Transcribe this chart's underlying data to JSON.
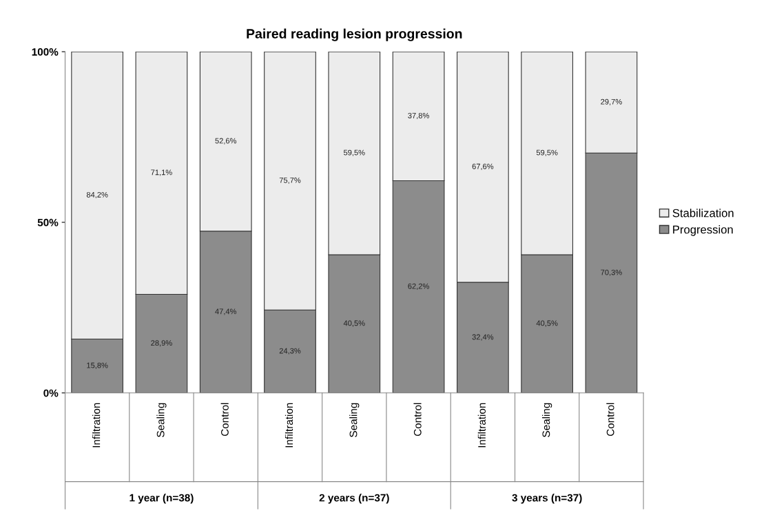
{
  "chart_data": {
    "type": "bar",
    "title": "Paired reading lesion progression",
    "categories": [
      "Infiltration",
      "Sealing",
      "Control",
      "Infiltration",
      "Sealing",
      "Control",
      "Infiltration",
      "Sealing",
      "Control"
    ],
    "series": [
      {
        "name": "Progression",
        "color": "#8c8c8c",
        "values": [
          15.8,
          28.9,
          47.4,
          24.3,
          40.5,
          62.2,
          32.4,
          40.5,
          70.3
        ],
        "value_labels": [
          "15,8%",
          "28,9%",
          "47,4%",
          "24,3%",
          "40,5%",
          "62,2%",
          "32,4%",
          "40,5%",
          "70,3%"
        ]
      },
      {
        "name": "Stabilization",
        "color": "#ececec",
        "values": [
          84.2,
          71.1,
          52.6,
          75.7,
          59.5,
          37.8,
          67.6,
          59.5,
          29.7
        ],
        "value_labels": [
          "84,2%",
          "71,1%",
          "52,6%",
          "75,7%",
          "59,5%",
          "37,8%",
          "67,6%",
          "59,5%",
          "29,7%"
        ]
      }
    ],
    "stacked": true,
    "ylim": [
      0,
      100
    ],
    "yticks": [
      {
        "value": 0,
        "label": "0%"
      },
      {
        "value": 50,
        "label": "50%"
      },
      {
        "value": 100,
        "label": "100%"
      }
    ],
    "annotations": [
      "1 year (n=38)",
      "2 years (n=37)",
      "3 years (n=37)"
    ],
    "grid": false,
    "legend": "right"
  }
}
